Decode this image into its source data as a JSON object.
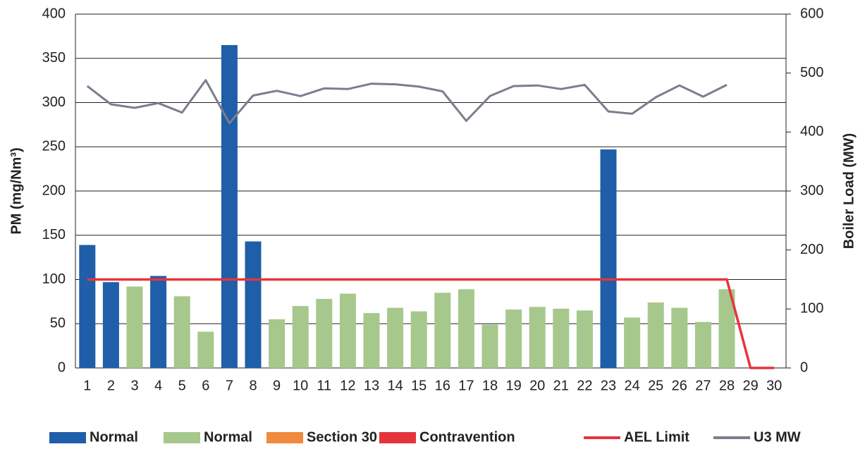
{
  "chart_data": {
    "type": "bar",
    "y_label": "PM (mg/Nm³)",
    "y2_label": "Boiler Load (MW)",
    "categories": [
      "1",
      "2",
      "3",
      "4",
      "5",
      "6",
      "7",
      "8",
      "9",
      "10",
      "11",
      "12",
      "13",
      "14",
      "15",
      "16",
      "17",
      "18",
      "19",
      "20",
      "21",
      "22",
      "23",
      "24",
      "25",
      "26",
      "27",
      "28",
      "29",
      "30"
    ],
    "ylim": [
      0,
      400
    ],
    "yticks": [
      0,
      50,
      100,
      150,
      200,
      250,
      300,
      350,
      400
    ],
    "y2lim": [
      0,
      600
    ],
    "y2ticks": [
      0,
      100,
      200,
      300,
      400,
      500,
      600
    ],
    "grid": true,
    "series": [
      {
        "name": "Normal",
        "type": "bar",
        "color": "#1f5ea8",
        "values": [
          139,
          97,
          null,
          104,
          null,
          null,
          365,
          143,
          null,
          null,
          null,
          null,
          null,
          null,
          null,
          null,
          null,
          null,
          null,
          null,
          null,
          null,
          247,
          null,
          null,
          null,
          null,
          null,
          null,
          null
        ]
      },
      {
        "name": "Normal",
        "type": "bar",
        "color": "#a6c88c",
        "values": [
          null,
          null,
          92,
          null,
          81,
          41,
          null,
          null,
          55,
          70,
          78,
          84,
          62,
          68,
          64,
          85,
          89,
          49,
          66,
          69,
          67,
          65,
          null,
          57,
          74,
          68,
          52,
          89,
          null,
          null
        ]
      },
      {
        "name": "Section 30",
        "type": "bar",
        "color": "#f08a3c",
        "values": [
          null,
          null,
          null,
          null,
          null,
          null,
          null,
          null,
          null,
          null,
          null,
          null,
          null,
          null,
          null,
          null,
          null,
          null,
          null,
          null,
          null,
          null,
          null,
          null,
          null,
          null,
          null,
          null,
          null,
          null
        ]
      },
      {
        "name": "Contravention",
        "type": "bar",
        "color": "#e5343e",
        "values": [
          null,
          null,
          null,
          null,
          null,
          null,
          null,
          null,
          null,
          null,
          null,
          null,
          null,
          null,
          null,
          null,
          null,
          null,
          null,
          null,
          null,
          null,
          null,
          null,
          null,
          null,
          null,
          null,
          null,
          null
        ]
      },
      {
        "name": "AEL Limit",
        "type": "line",
        "color": "#e5343e",
        "values": [
          100,
          100,
          100,
          100,
          100,
          100,
          100,
          100,
          100,
          100,
          100,
          100,
          100,
          100,
          100,
          100,
          100,
          100,
          100,
          100,
          100,
          100,
          100,
          100,
          100,
          100,
          100,
          100,
          0,
          0
        ]
      },
      {
        "name": "U3 MW",
        "type": "line",
        "color": "#7a7e8e",
        "axis": "y2",
        "values": [
          478,
          447,
          441,
          449,
          433,
          488,
          415,
          462,
          470,
          461,
          474,
          473,
          482,
          481,
          477,
          469,
          419,
          461,
          478,
          479,
          473,
          480,
          435,
          431,
          459,
          479,
          460,
          480,
          null,
          null
        ]
      }
    ]
  }
}
